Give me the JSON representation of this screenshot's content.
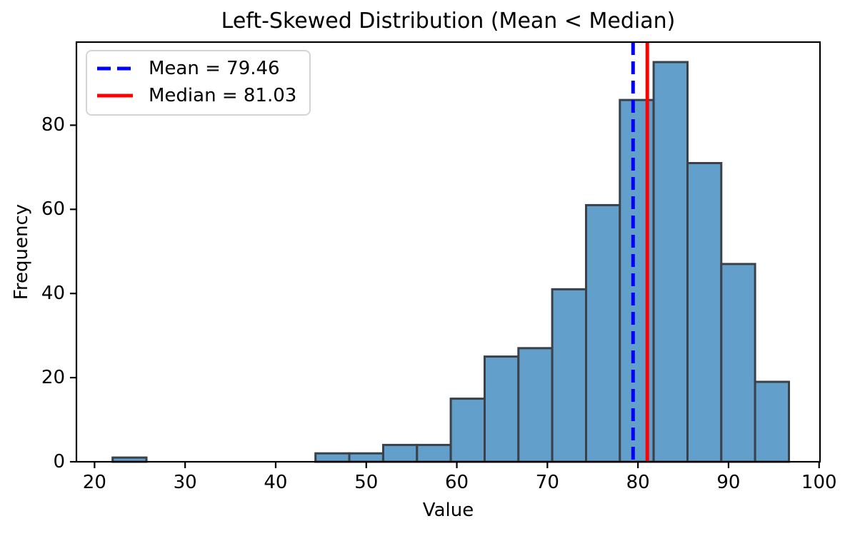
{
  "figure": {
    "title": "Left-Skewed Distribution (Mean < Median)",
    "xlabel": "Value",
    "ylabel": "Frequency"
  },
  "legend": {
    "position": "upper left",
    "items": [
      {
        "label": "Mean = 79.46",
        "color": "#0000ff",
        "style": "dashed"
      },
      {
        "label": "Median = 81.03",
        "color": "#ff0000",
        "style": "solid"
      }
    ]
  },
  "chart_data": {
    "type": "bar",
    "subtype": "histogram",
    "title": "Left-Skewed Distribution (Mean < Median)",
    "xlabel": "Value",
    "ylabel": "Frequency",
    "bin_edges": [
      22.0,
      25.73,
      29.47,
      33.2,
      36.93,
      40.67,
      44.4,
      48.13,
      51.87,
      55.6,
      59.33,
      63.07,
      66.8,
      70.53,
      74.27,
      78.0,
      81.73,
      85.47,
      89.2,
      92.93,
      96.67
    ],
    "counts": [
      1,
      0,
      0,
      0,
      0,
      0,
      2,
      2,
      4,
      4,
      15,
      25,
      27,
      41,
      61,
      86,
      95,
      71,
      47,
      19
    ],
    "total_samples": 500,
    "mean": 79.46,
    "median": 81.03,
    "xlim": [
      18.0,
      100.1
    ],
    "ylim": [
      0,
      99.75
    ],
    "xticks": [
      20,
      30,
      40,
      50,
      60,
      70,
      80,
      90,
      100
    ],
    "yticks": [
      0,
      20,
      40,
      60,
      80
    ],
    "grid": false,
    "legend_position": "upper left",
    "colors": {
      "bar_fill": "#629fca",
      "bar_edge": "#3a4149",
      "mean_line": "#0000ff",
      "median_line": "#ff0000",
      "axis": "#000000",
      "legend_border": "#d5d5d5"
    }
  }
}
